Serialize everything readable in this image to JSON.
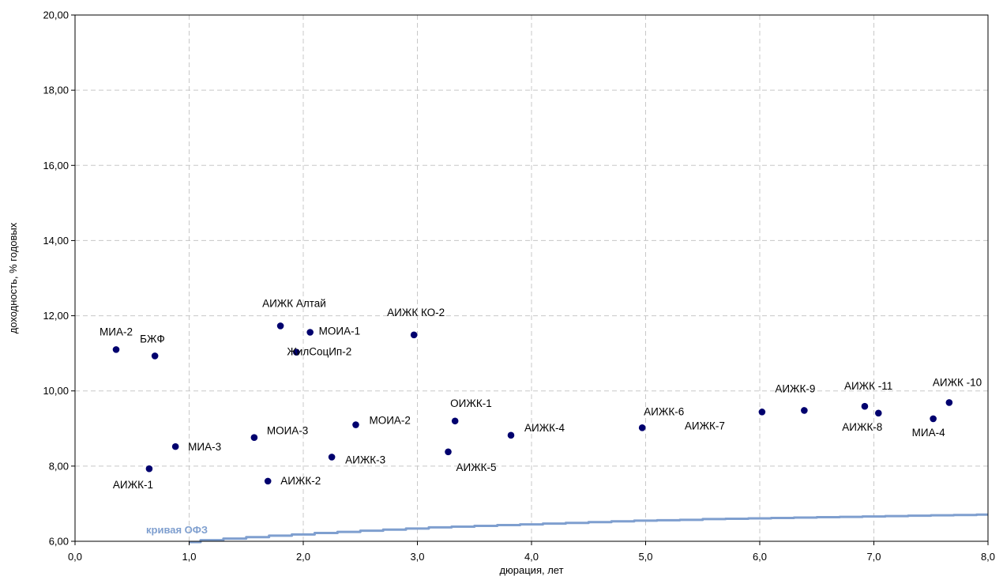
{
  "chart_data": {
    "type": "scatter",
    "xlabel": "дюрация, лет",
    "ylabel": "доходность, % годовых",
    "xlim": [
      0,
      8
    ],
    "ylim": [
      6,
      20
    ],
    "x_ticks": [
      "0,0",
      "1,0",
      "2,0",
      "3,0",
      "4,0",
      "5,0",
      "6,0",
      "7,0",
      "8,0"
    ],
    "y_ticks": [
      "6,00",
      "8,00",
      "10,00",
      "12,00",
      "14,00",
      "16,00",
      "18,00",
      "20,00"
    ],
    "grid": true,
    "marker_color": "#00006e",
    "line_color": "#7f9fcf",
    "points": [
      {
        "label": "МИА-2",
        "x": 0.36,
        "y": 11.1
      },
      {
        "label": "БЖФ",
        "x": 0.7,
        "y": 10.93
      },
      {
        "label": "АИЖК-1",
        "x": 0.65,
        "y": 7.93
      },
      {
        "label": "МИА-3",
        "x": 0.88,
        "y": 8.52
      },
      {
        "label": "МОИА-3",
        "x": 1.57,
        "y": 8.76
      },
      {
        "label": "АИЖК-2",
        "x": 1.69,
        "y": 7.6
      },
      {
        "label": "АИЖК Алтай",
        "x": 1.8,
        "y": 11.73
      },
      {
        "label": "ЖилСоцИп-2",
        "x": 1.94,
        "y": 11.03
      },
      {
        "label": "МОИА-1",
        "x": 2.06,
        "y": 11.56
      },
      {
        "label": "АИЖК-3",
        "x": 2.25,
        "y": 8.24
      },
      {
        "label": "МОИА-2",
        "x": 2.46,
        "y": 9.1
      },
      {
        "label": "АИЖК КО-2",
        "x": 2.97,
        "y": 11.49
      },
      {
        "label": "АИЖК-5",
        "x": 3.27,
        "y": 8.38
      },
      {
        "label": "ОИЖК-1",
        "x": 3.33,
        "y": 9.2
      },
      {
        "label": "АИЖК-4",
        "x": 3.82,
        "y": 8.82
      },
      {
        "label": "АИЖК-6",
        "x": 4.97,
        "y": 9.02
      },
      {
        "label": "АИЖК-7",
        "x": 6.02,
        "y": 9.44
      },
      {
        "label": "АИЖК-9",
        "x": 6.39,
        "y": 9.48
      },
      {
        "label": "АИЖК -11",
        "x": 6.92,
        "y": 9.59
      },
      {
        "label": "АИЖК-8",
        "x": 7.04,
        "y": 9.41
      },
      {
        "label": "МИА-4",
        "x": 7.52,
        "y": 9.26
      },
      {
        "label": "АИЖК -10",
        "x": 7.66,
        "y": 9.69
      }
    ],
    "curve": {
      "name": "кривая ОФЗ",
      "x": [
        1.0,
        1.2,
        1.4,
        1.6,
        1.8,
        2.0,
        2.2,
        2.4,
        2.6,
        2.8,
        3.0,
        3.2,
        3.4,
        3.6,
        3.8,
        4.0,
        4.2,
        4.4,
        4.6,
        4.8,
        5.0,
        5.2,
        5.4,
        5.6,
        5.8,
        6.0,
        6.2,
        6.4,
        6.6,
        6.8,
        7.0,
        7.2,
        7.4,
        7.6,
        7.8,
        8.0
      ],
      "y": [
        5.98,
        6.03,
        6.07,
        6.11,
        6.15,
        6.18,
        6.22,
        6.25,
        6.28,
        6.31,
        6.34,
        6.37,
        6.39,
        6.41,
        6.43,
        6.45,
        6.47,
        6.49,
        6.51,
        6.53,
        6.55,
        6.56,
        6.57,
        6.59,
        6.6,
        6.61,
        6.62,
        6.63,
        6.64,
        6.65,
        6.66,
        6.67,
        6.68,
        6.69,
        6.7,
        6.71
      ]
    }
  }
}
